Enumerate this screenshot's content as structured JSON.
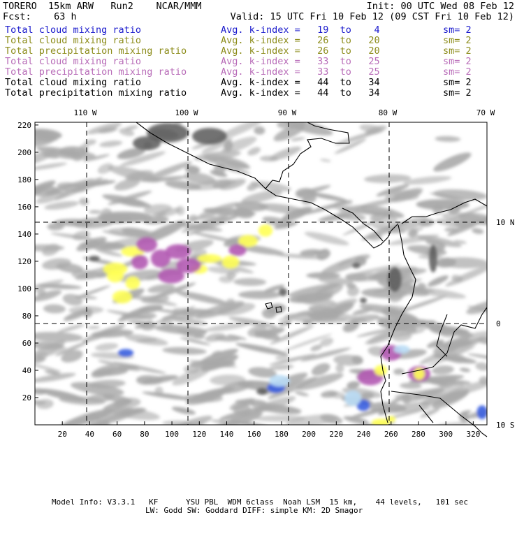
{
  "header": {
    "line1_left": "TORERO  15km ARW   Run2    NCAR/MMM",
    "line1_right": "Init: 00 UTC Wed 08 Feb 12",
    "line2_left": "Fcst:    63 h",
    "line2_right": "Valid: 15 UTC Fri 10 Feb 12 (09 CST Fri 10 Feb 12)"
  },
  "legend": [
    {
      "name": "Total cloud mixing ratio",
      "idx": "Avg. k-index =   19  to    4",
      "sm": "sm= 2",
      "color": "#1a1acc"
    },
    {
      "name": "Total cloud mixing ratio",
      "idx": "Avg. k-index =   26  to   20",
      "sm": "sm= 2",
      "color": "#8c8c1a"
    },
    {
      "name": "Total precipitation mixing ratio",
      "idx": "Avg. k-index =   26  to   20",
      "sm": "sm= 2",
      "color": "#8c8c1a"
    },
    {
      "name": "Total cloud mixing ratio",
      "idx": "Avg. k-index =   33  to   25",
      "sm": "sm= 2",
      "color": "#b86cb8"
    },
    {
      "name": "Total precipitation mixing ratio",
      "idx": "Avg. k-index =   33  to   25",
      "sm": "sm= 2",
      "color": "#b86cb8"
    },
    {
      "name": "Total cloud mixing ratio",
      "idx": "Avg. k-index =   44  to   34",
      "sm": "sm= 2",
      "color": "#000000"
    },
    {
      "name": "Total precipitation mixing ratio",
      "idx": "Avg. k-index =   44  to   34",
      "sm": "sm= 2",
      "color": "#000000"
    }
  ],
  "map": {
    "lon_labels": [
      "110 W",
      "100 W",
      "90 W",
      "80 W",
      "70 W"
    ],
    "lat_labels": [
      "10 N",
      "0",
      "10 S"
    ],
    "x_ticks": [
      "20",
      "40",
      "60",
      "80",
      "100",
      "120",
      "140",
      "160",
      "180",
      "200",
      "220",
      "240",
      "260",
      "280",
      "300",
      "320"
    ],
    "y_ticks": [
      "220",
      "200",
      "180",
      "160",
      "140",
      "120",
      "100",
      "80",
      "60",
      "40",
      "20"
    ],
    "colors": {
      "cloud_gray": "#a8a8a8",
      "dark_gray": "#5a5a5a",
      "purple": "#b25ab2",
      "yellow": "#ffff55",
      "blue": "#3a5fe0",
      "light_blue": "#b9dcf5"
    }
  },
  "footer": {
    "line1": "Model Info: V3.3.1   KF      YSU PBL  WDM 6class  Noah LSM  15 km,    44 levels,   101 sec",
    "line2": "LW: Godd SW: Goddard DIFF: simple KM: 2D Smagor"
  }
}
